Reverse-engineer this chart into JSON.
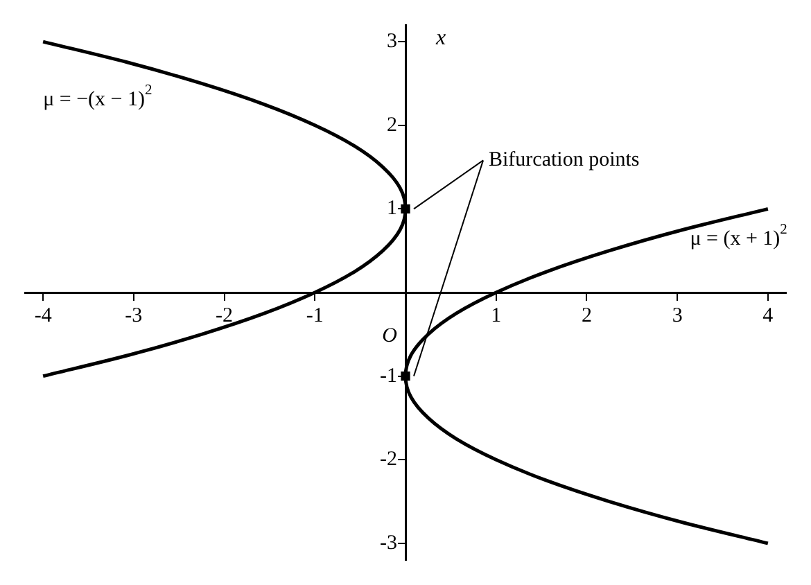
{
  "chart_data": {
    "type": "line",
    "ylabel": "x",
    "xlim": [
      -4.2,
      4.2
    ],
    "ylim": [
      -3.2,
      3.2
    ],
    "xticks": [
      -4,
      -3,
      -2,
      -1,
      {
        "value": 0,
        "label": null
      },
      1,
      2,
      3,
      4
    ],
    "yticks": [
      -3,
      -2,
      -1,
      {
        "value": 0,
        "label": null
      },
      1,
      2,
      3
    ],
    "grid": false,
    "legend": false,
    "line_style": "solid",
    "marker": "none",
    "series": [
      {
        "name": "μ = −(x − 1)$^{2}$",
        "color": "#000000",
        "x": [
          -4,
          -3.06,
          -2.25,
          -1.56,
          -1,
          -0.56,
          -0.25,
          -0.06,
          0,
          -0.06,
          -0.25,
          -0.56,
          -1,
          -1.56,
          -2.25,
          -3.06,
          -4
        ],
        "values": [
          -1,
          -0.75,
          -0.5,
          -0.25,
          0,
          0.25,
          0.5,
          0.75,
          1,
          1.25,
          1.5,
          1.75,
          2,
          2.25,
          2.5,
          2.75,
          3
        ]
      },
      {
        "name": "μ = (x + 1)$^{2}$",
        "color": "#000000",
        "x": [
          4,
          3.06,
          2.25,
          1.56,
          1,
          0.56,
          0.25,
          0.06,
          0,
          0.06,
          0.25,
          0.56,
          1,
          1.56,
          2.25,
          3.06,
          4
        ],
        "values": [
          -3,
          -2.75,
          -2.5,
          -2.25,
          -2,
          -1.75,
          -1.5,
          -1.25,
          -1,
          -0.75,
          -0.5,
          -0.25,
          0,
          0.25,
          0.5,
          0.75,
          1
        ]
      },
      {
        "type": "scatter",
        "marker": "square",
        "color": "#000000",
        "x": [
          0,
          0
        ],
        "values": [
          1,
          -1
        ]
      }
    ],
    "annotations": [
      {
        "text": "Bifurcation points",
        "x": 0,
        "y": 1
      },
      "O"
    ]
  }
}
